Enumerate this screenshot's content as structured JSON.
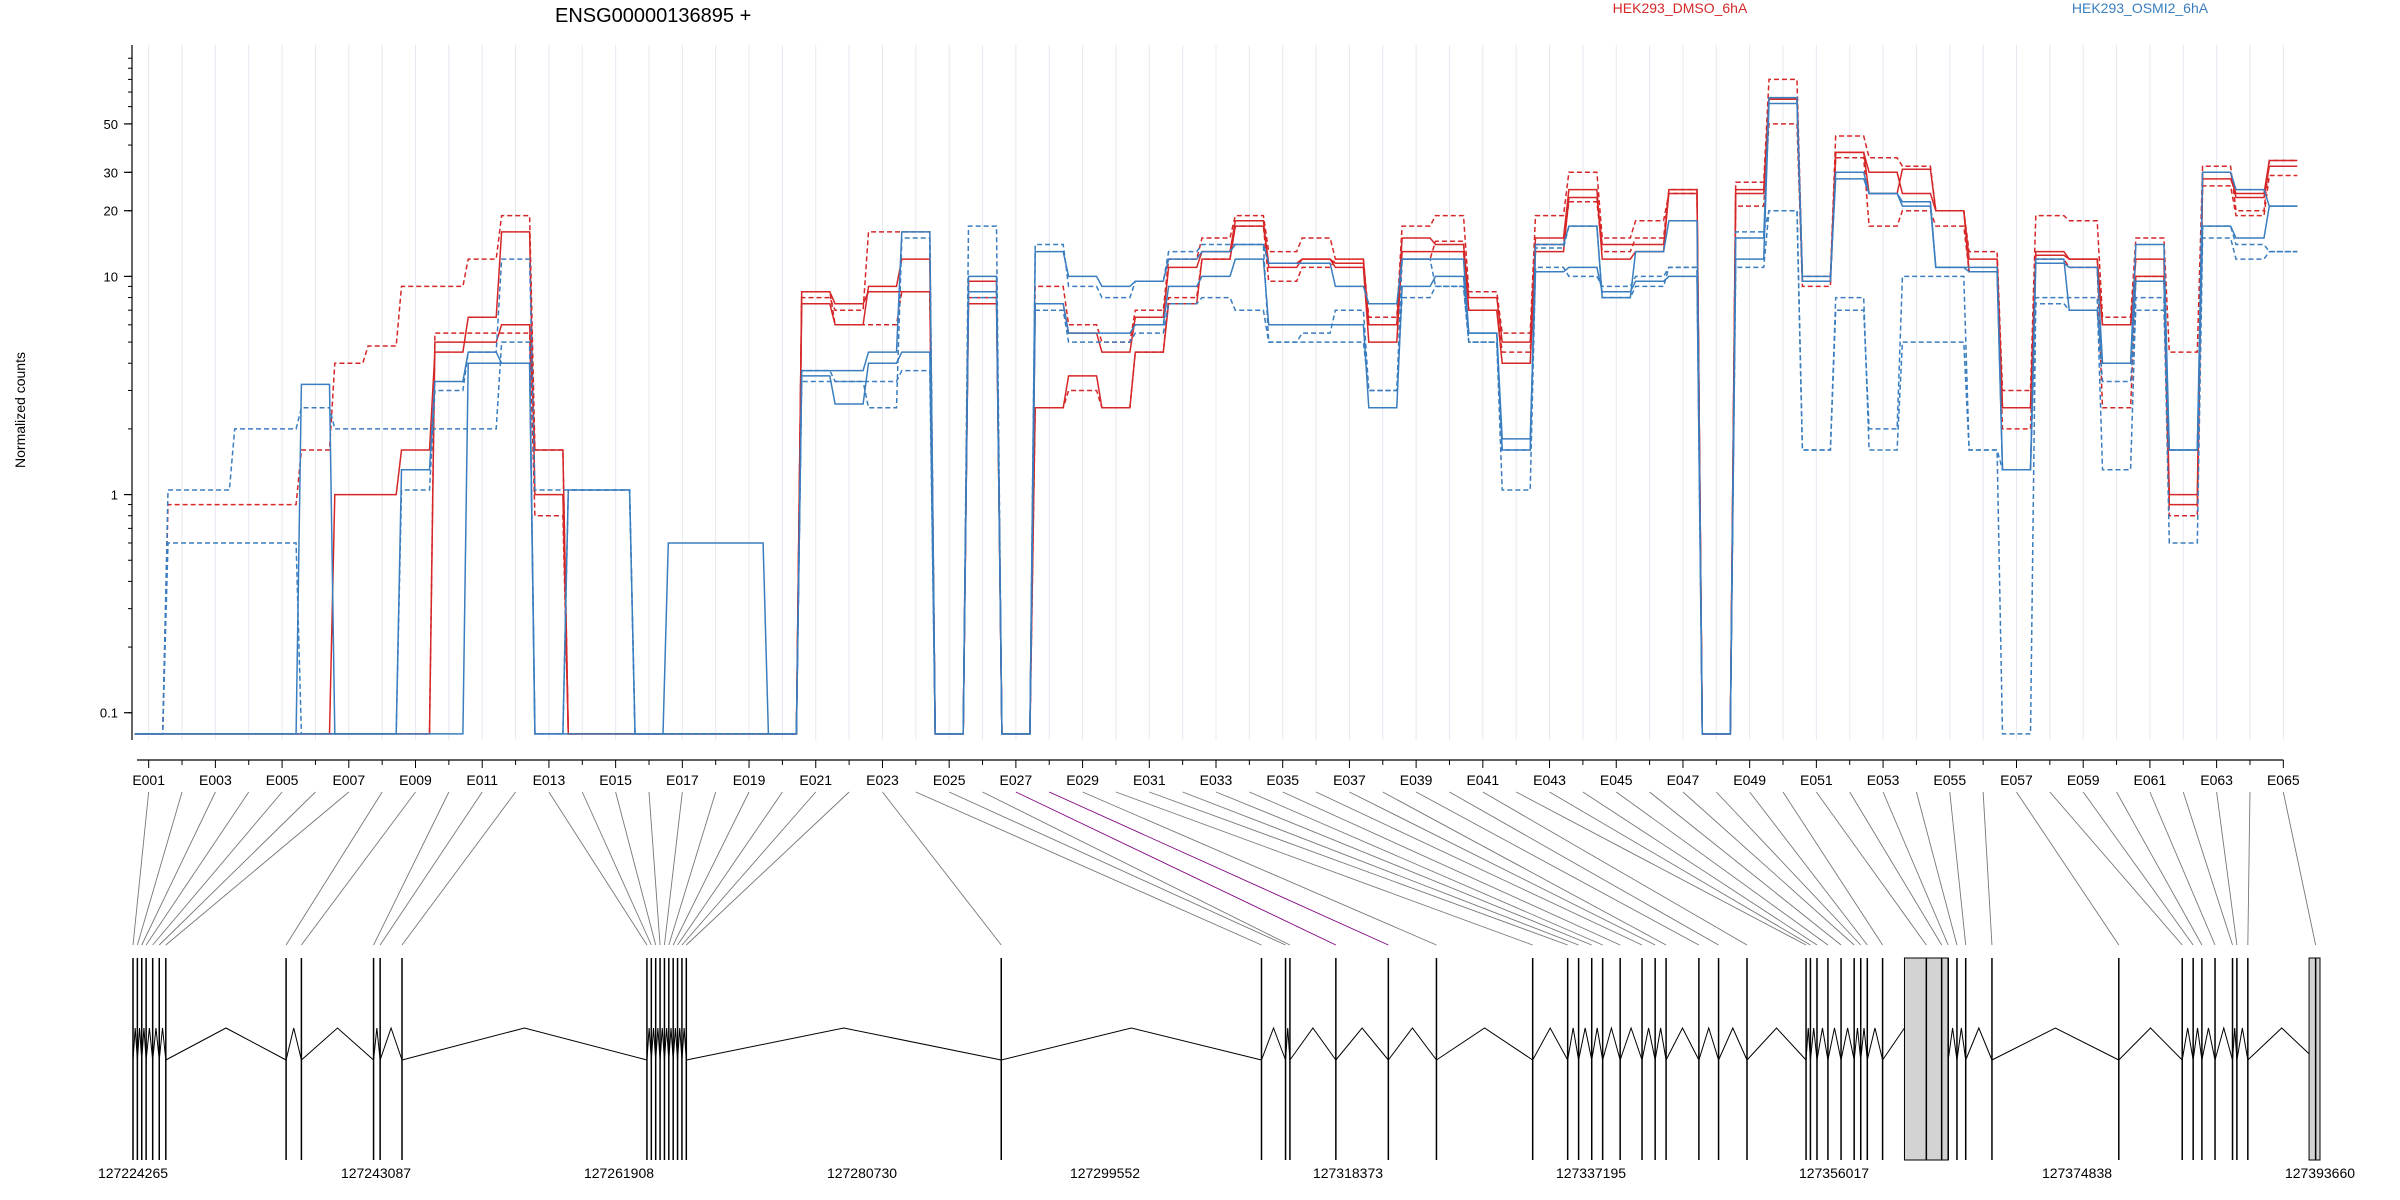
{
  "chart_data": {
    "type": "line",
    "title": "ENSG00000136895 +",
    "xlabel": "",
    "ylabel": "Normalized counts",
    "y_scale": "log",
    "yticks": [
      0.1,
      1,
      10,
      20,
      30,
      50
    ],
    "ytick_labels": [
      "0.1",
      "1",
      "10",
      "20",
      "30",
      "50"
    ],
    "colors": {
      "HEK293_DMSO_6hA": "#d62728",
      "HEK293_OSMI2_6hA": "#3a7ebf",
      "axis": "#000000",
      "grid": "#e6e8f2",
      "exon_fill": "#d3d3d3",
      "highlight": "#800080"
    },
    "exons": [
      "E001",
      "E002",
      "E003",
      "E004",
      "E005",
      "E006",
      "E007",
      "E008",
      "E009",
      "E010",
      "E011",
      "E012",
      "E013",
      "E014",
      "E015",
      "E016",
      "E017",
      "E018",
      "E019",
      "E020",
      "E021",
      "E022",
      "E023",
      "E024",
      "E025",
      "E026",
      "E027",
      "E028",
      "E029",
      "E030",
      "E031",
      "E032",
      "E033",
      "E034",
      "E035",
      "E036",
      "E037",
      "E038",
      "E039",
      "E040",
      "E041",
      "E042",
      "E043",
      "E044",
      "E045",
      "E046",
      "E047",
      "E048",
      "E049",
      "E050",
      "E051",
      "E052",
      "E053",
      "E054",
      "E055",
      "E056",
      "E057",
      "E058",
      "E059",
      "E060",
      "E061",
      "E062",
      "E063",
      "E064",
      "E065"
    ],
    "exon_labels": [
      "E001",
      "E003",
      "E005",
      "E007",
      "E009",
      "E011",
      "E013",
      "E015",
      "E017",
      "E019",
      "E021",
      "E023",
      "E025",
      "E027",
      "E029",
      "E031",
      "E033",
      "E035",
      "E037",
      "E039",
      "E041",
      "E043",
      "E045",
      "E047",
      "E049",
      "E051",
      "E053",
      "E055",
      "E057",
      "E059",
      "E061",
      "E063",
      "E065"
    ],
    "legend": [
      {
        "name": "HEK293_DMSO_6hA",
        "color": "#d62728"
      },
      {
        "name": "HEK293_OSMI2_6hA",
        "color": "#3a7ebf"
      }
    ],
    "series": [
      {
        "group": "HEK293_DMSO_6hA",
        "style": "dashed",
        "values": [
          0.08,
          0.9,
          0.9,
          0.9,
          0.9,
          1.6,
          4.0,
          4.8,
          9.0,
          9.0,
          12.0,
          19.0,
          1.6,
          0.08,
          0.08,
          0.08,
          0.08,
          0.08,
          0.08,
          0.08,
          8.0,
          7.0,
          16.0,
          16.0,
          0.08,
          8.0,
          0.08,
          9.0,
          6.0,
          5.0,
          7.0,
          12.0,
          15.0,
          19.0,
          13.0,
          15.0,
          12.0,
          6.5,
          17.0,
          19.0,
          8.5,
          5.5,
          19.0,
          30.0,
          15.0,
          18.0,
          24.0,
          0.08,
          27.0,
          80.0,
          10.0,
          44.0,
          35.0,
          32.0,
          20.0,
          13.0,
          3.0,
          19.0,
          18.0,
          6.5,
          15.0,
          4.5,
          32.0,
          20.0,
          34.0
        ]
      },
      {
        "group": "HEK293_DMSO_6hA",
        "style": "solid",
        "values": [
          0.08,
          0.08,
          0.08,
          0.08,
          0.08,
          0.08,
          1.0,
          1.0,
          1.6,
          4.5,
          6.5,
          16.0,
          1.0,
          0.08,
          0.08,
          0.08,
          0.08,
          0.08,
          0.08,
          0.08,
          7.5,
          6.0,
          9.0,
          12.0,
          0.08,
          7.5,
          0.08,
          7.5,
          5.5,
          4.5,
          6.5,
          11.0,
          13.0,
          18.0,
          11.0,
          12.0,
          11.5,
          6.0,
          15.0,
          14.0,
          8.0,
          5.0,
          15.0,
          25.0,
          12.0,
          13.0,
          25.0,
          0.08,
          25.0,
          65.0,
          9.5,
          37.0,
          30.0,
          24.0,
          20.0,
          12.0,
          2.5,
          13.0,
          12.0,
          6.0,
          12.0,
          1.0,
          30.0,
          23.0,
          32.0
        ]
      },
      {
        "group": "HEK293_DMSO_6hA",
        "style": "dashed",
        "values": [
          0.08,
          0.08,
          0.08,
          0.08,
          0.08,
          0.08,
          0.08,
          0.08,
          0.08,
          5.5,
          5.5,
          5.5,
          0.8,
          0.08,
          0.08,
          0.08,
          0.08,
          0.08,
          0.08,
          0.08,
          8.5,
          6.0,
          6.0,
          8.5,
          0.08,
          9.5,
          0.08,
          2.5,
          3.0,
          2.5,
          4.5,
          8.0,
          12.0,
          17.0,
          9.5,
          11.0,
          12.0,
          6.0,
          12.0,
          14.5,
          7.0,
          4.5,
          14.0,
          22.0,
          13.0,
          15.0,
          25.0,
          0.08,
          21.0,
          50.0,
          9.0,
          35.0,
          17.0,
          20.0,
          17.0,
          10.5,
          2.0,
          12.0,
          11.0,
          2.5,
          10.0,
          0.8,
          26.0,
          19.0,
          29.0
        ]
      },
      {
        "group": "HEK293_DMSO_6hA",
        "style": "solid",
        "values": [
          0.08,
          0.08,
          0.08,
          0.08,
          0.08,
          0.08,
          0.08,
          0.08,
          0.08,
          5.0,
          5.0,
          6.0,
          1.6,
          0.08,
          0.08,
          0.08,
          0.08,
          0.08,
          0.08,
          0.08,
          8.5,
          7.5,
          8.5,
          8.5,
          0.08,
          9.5,
          0.08,
          2.5,
          3.5,
          2.5,
          4.5,
          7.5,
          12.0,
          17.0,
          11.5,
          12.0,
          11.0,
          5.0,
          13.0,
          13.0,
          7.0,
          4.0,
          13.0,
          23.0,
          14.0,
          14.0,
          24.0,
          0.08,
          24.0,
          65.0,
          9.5,
          37.0,
          24.0,
          31.0,
          20.0,
          10.5,
          2.5,
          12.5,
          12.0,
          6.0,
          10.0,
          0.9,
          28.0,
          24.0,
          34.0
        ]
      },
      {
        "group": "HEK293_OSMI2_6hA",
        "style": "dashed",
        "values": [
          0.08,
          1.05,
          1.05,
          2.0,
          2.0,
          2.5,
          2.0,
          2.0,
          2.0,
          2.0,
          2.0,
          5.0,
          0.08,
          1.05,
          1.05,
          0.08,
          0.08,
          0.08,
          0.08,
          0.08,
          3.3,
          3.3,
          2.5,
          15.0,
          0.08,
          17.0,
          0.08,
          14.0,
          9.0,
          8.0,
          9.5,
          13.0,
          14.0,
          14.0,
          5.0,
          5.0,
          5.0,
          3.0,
          12.0,
          9.0,
          5.0,
          1.05,
          11.0,
          10.0,
          9.0,
          10.0,
          11.0,
          0.08,
          11.0,
          20.0,
          1.6,
          8.0,
          1.6,
          5.0,
          5.0,
          1.6,
          0.08,
          8.0,
          8.0,
          1.3,
          8.0,
          0.6,
          15.0,
          12.0,
          13.0
        ]
      },
      {
        "group": "HEK293_OSMI2_6hA",
        "style": "solid",
        "values": [
          0.08,
          0.08,
          0.08,
          0.08,
          0.08,
          0.08,
          0.08,
          0.08,
          0.08,
          0.08,
          4.0,
          4.0,
          0.08,
          1.05,
          1.05,
          0.08,
          0.6,
          0.6,
          0.6,
          0.08,
          3.7,
          3.7,
          4.5,
          16.0,
          0.08,
          10.0,
          0.08,
          13.0,
          10.0,
          9.0,
          9.5,
          12.0,
          13.0,
          14.0,
          11.5,
          11.5,
          9.0,
          7.5,
          12.0,
          12.0,
          5.5,
          1.6,
          14.0,
          17.0,
          8.0,
          13.0,
          18.0,
          0.08,
          15.0,
          66.0,
          10.0,
          28.0,
          24.0,
          22.0,
          11.0,
          11.0,
          1.3,
          11.5,
          11.0,
          4.0,
          14.0,
          1.6,
          30.0,
          25.0,
          21.0
        ]
      },
      {
        "group": "HEK293_OSMI2_6hA",
        "style": "dashed",
        "values": [
          0.08,
          0.6,
          0.6,
          0.6,
          0.6,
          0.08,
          0.08,
          0.08,
          1.05,
          3.0,
          4.5,
          12.0,
          1.05,
          1.05,
          1.05,
          0.08,
          0.08,
          0.08,
          0.08,
          0.08,
          3.7,
          3.3,
          3.3,
          3.7,
          0.08,
          8.0,
          0.08,
          7.0,
          5.0,
          5.0,
          5.5,
          7.5,
          8.0,
          7.0,
          5.0,
          5.5,
          7.0,
          3.0,
          8.0,
          9.0,
          5.0,
          1.6,
          13.5,
          17.0,
          8.0,
          9.0,
          11.0,
          0.08,
          16.0,
          20.0,
          1.6,
          7.0,
          2.0,
          10.0,
          10.0,
          1.6,
          1.3,
          7.5,
          7.0,
          3.3,
          7.0,
          1.6,
          17.0,
          14.0,
          13.0
        ]
      },
      {
        "group": "HEK293_OSMI2_6hA",
        "style": "solid",
        "values": [
          0.08,
          0.08,
          0.08,
          0.08,
          0.08,
          3.2,
          0.08,
          0.08,
          1.3,
          3.3,
          4.5,
          4.0,
          0.08,
          0.08,
          0.08,
          0.08,
          0.08,
          0.08,
          0.08,
          0.08,
          3.5,
          2.6,
          4.0,
          4.5,
          0.08,
          8.5,
          0.08,
          7.5,
          5.5,
          5.5,
          6.0,
          9.0,
          10.0,
          12.0,
          6.0,
          6.0,
          6.0,
          2.5,
          9.0,
          10.0,
          5.5,
          1.8,
          10.5,
          11.0,
          8.5,
          9.5,
          10.0,
          0.08,
          12.0,
          62.0,
          9.5,
          30.0,
          24.0,
          21.0,
          11.0,
          10.5,
          1.3,
          12.0,
          7.0,
          4.0,
          9.5,
          1.6,
          17.0,
          15.0,
          21.0
        ]
      }
    ],
    "gene_model": {
      "coord_labels": [
        "127224265",
        "127243087",
        "127261908",
        "127280730",
        "127299552",
        "127318373",
        "127337195",
        "127356017",
        "127374838",
        "127393660"
      ]
    }
  }
}
